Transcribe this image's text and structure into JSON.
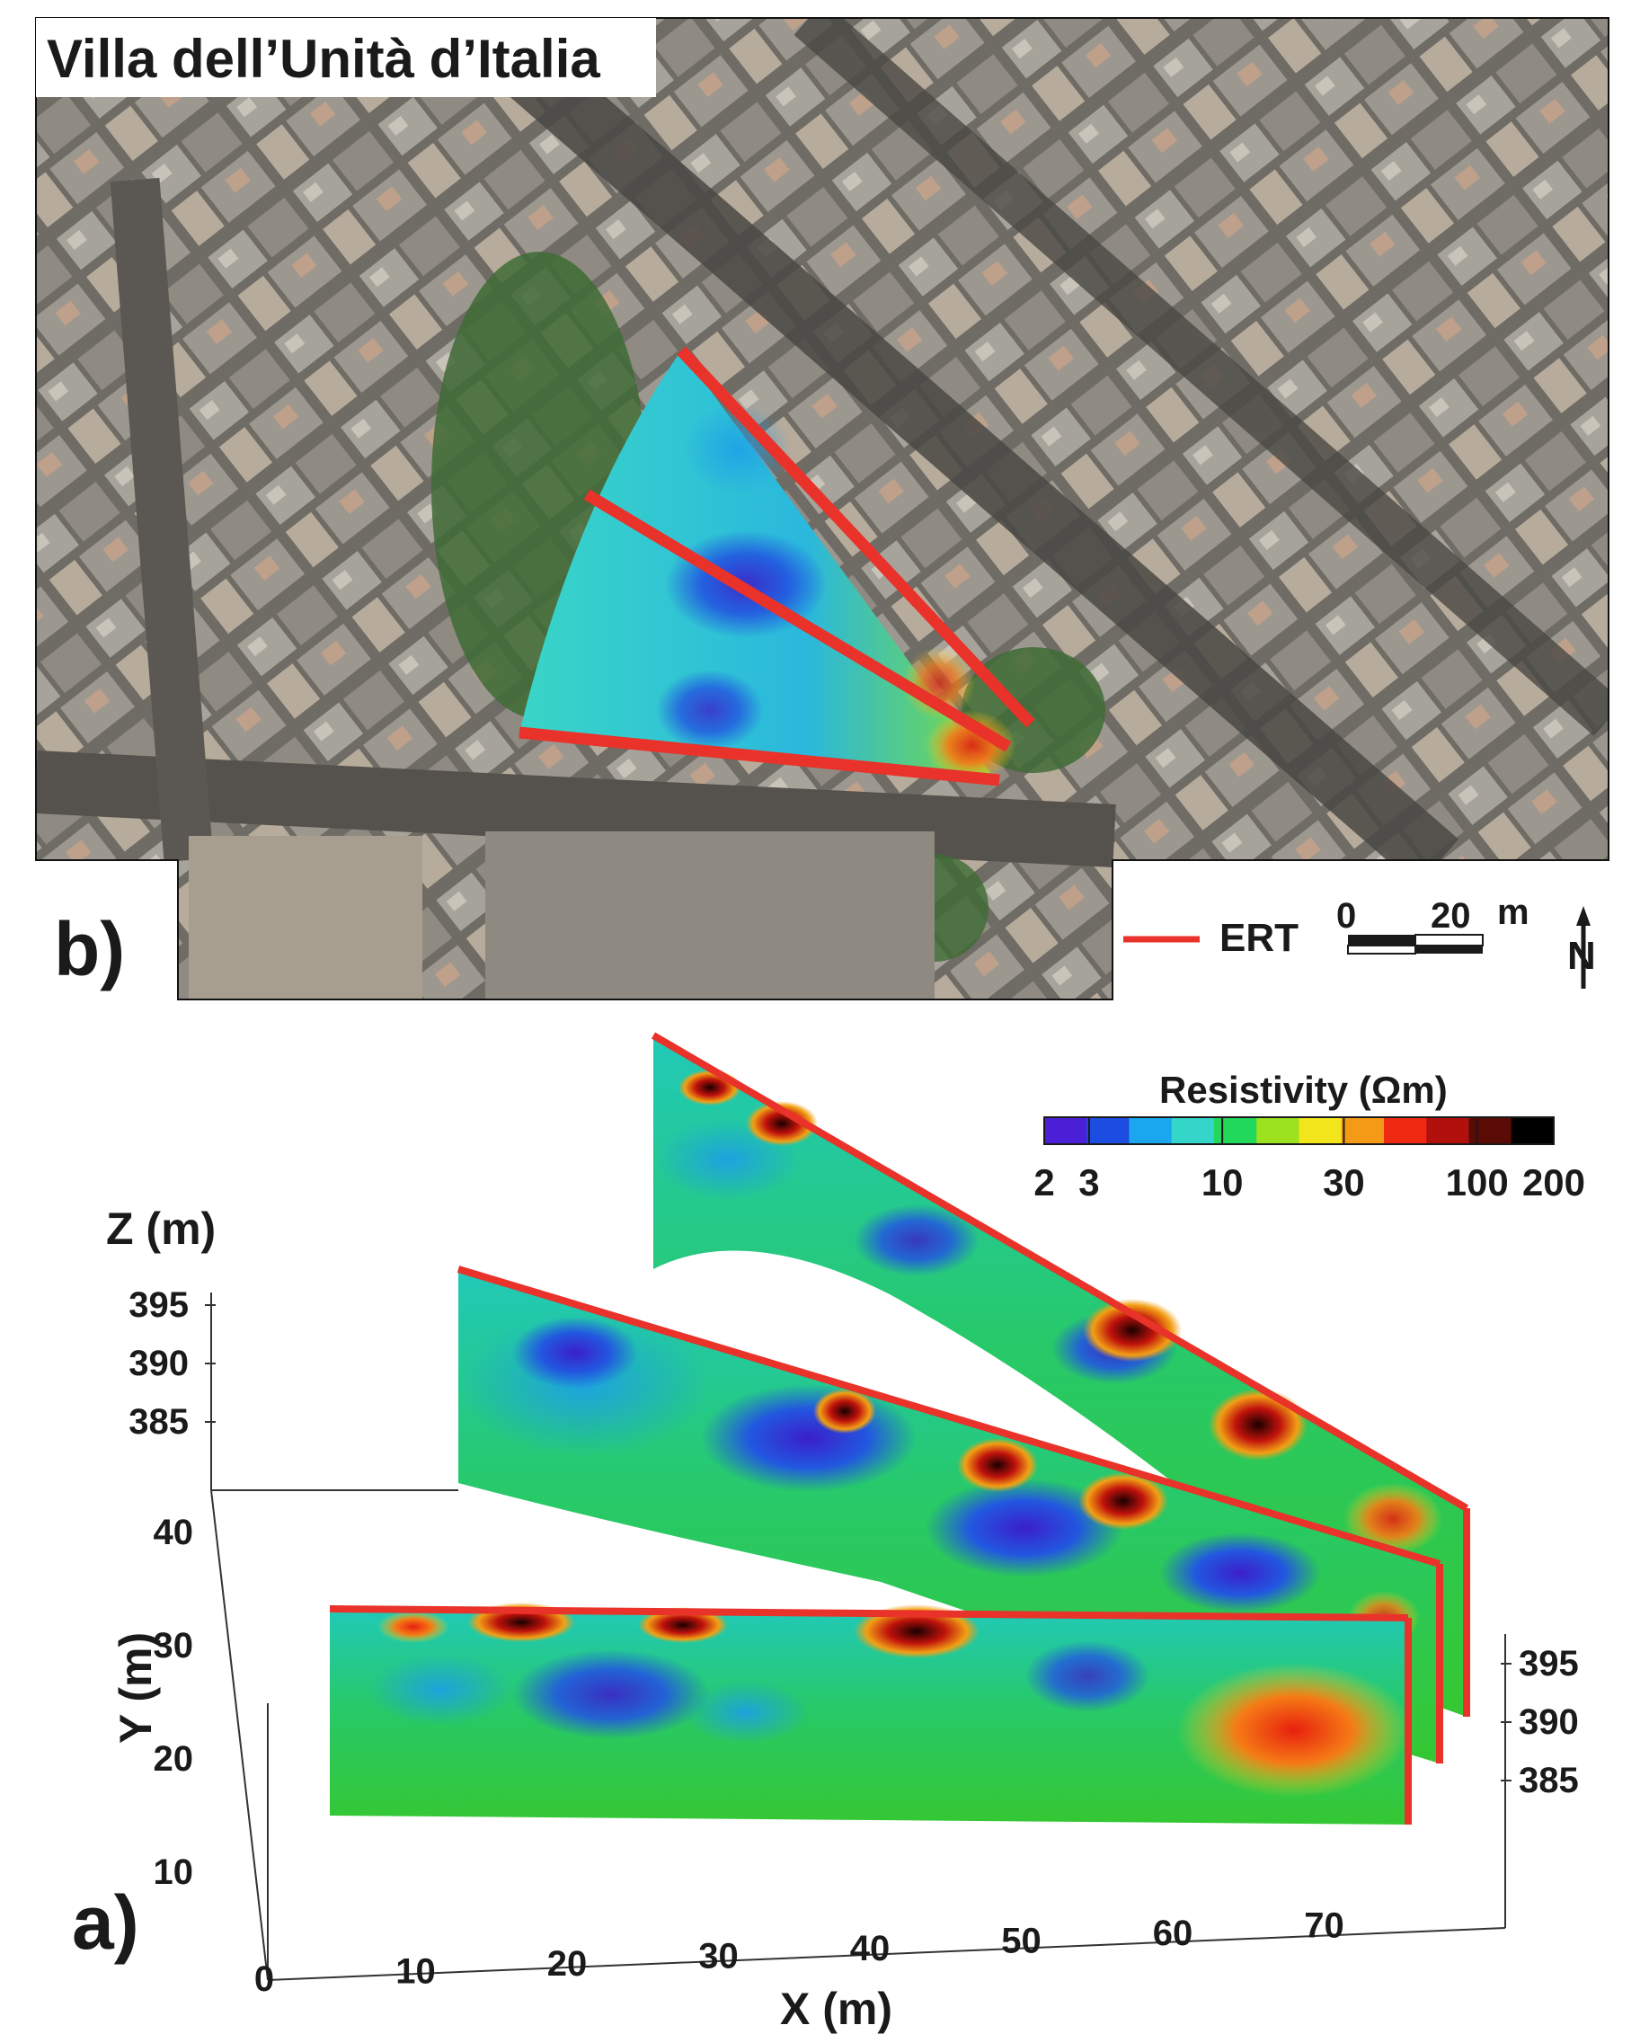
{
  "panel_b": {
    "title": "Villa dell’Unità d’Italia",
    "panel_label": "b)",
    "legend": {
      "line_label": "ERT",
      "line_color": "#e8322a",
      "scale_start": "0",
      "scale_end": "20",
      "scale_unit": "m",
      "north_label": "N"
    }
  },
  "panel_a": {
    "panel_label": "a)",
    "colorbar": {
      "title": "Resistivity (Ωm)",
      "ticks": [
        "2",
        "3",
        "10",
        "30",
        "100",
        "200"
      ],
      "colors": [
        "#4b1fd6",
        "#1c4de0",
        "#1aa7f0",
        "#33d6c8",
        "#22d85a",
        "#9ce21e",
        "#f3e51c",
        "#f49a16",
        "#f02a12",
        "#b1100c",
        "#5a0b06",
        "#000000"
      ]
    },
    "axes": {
      "z_label": "Z (m)",
      "z_ticks_left": [
        "395",
        "390",
        "385"
      ],
      "y_label": "Y (m)",
      "y_ticks": [
        "40",
        "30",
        "20",
        "10"
      ],
      "x_label": "X (m)",
      "x_ticks": [
        "0",
        "10",
        "20",
        "30",
        "40",
        "50",
        "60",
        "70"
      ],
      "z_ticks_right": [
        "395",
        "390",
        "385"
      ]
    }
  }
}
